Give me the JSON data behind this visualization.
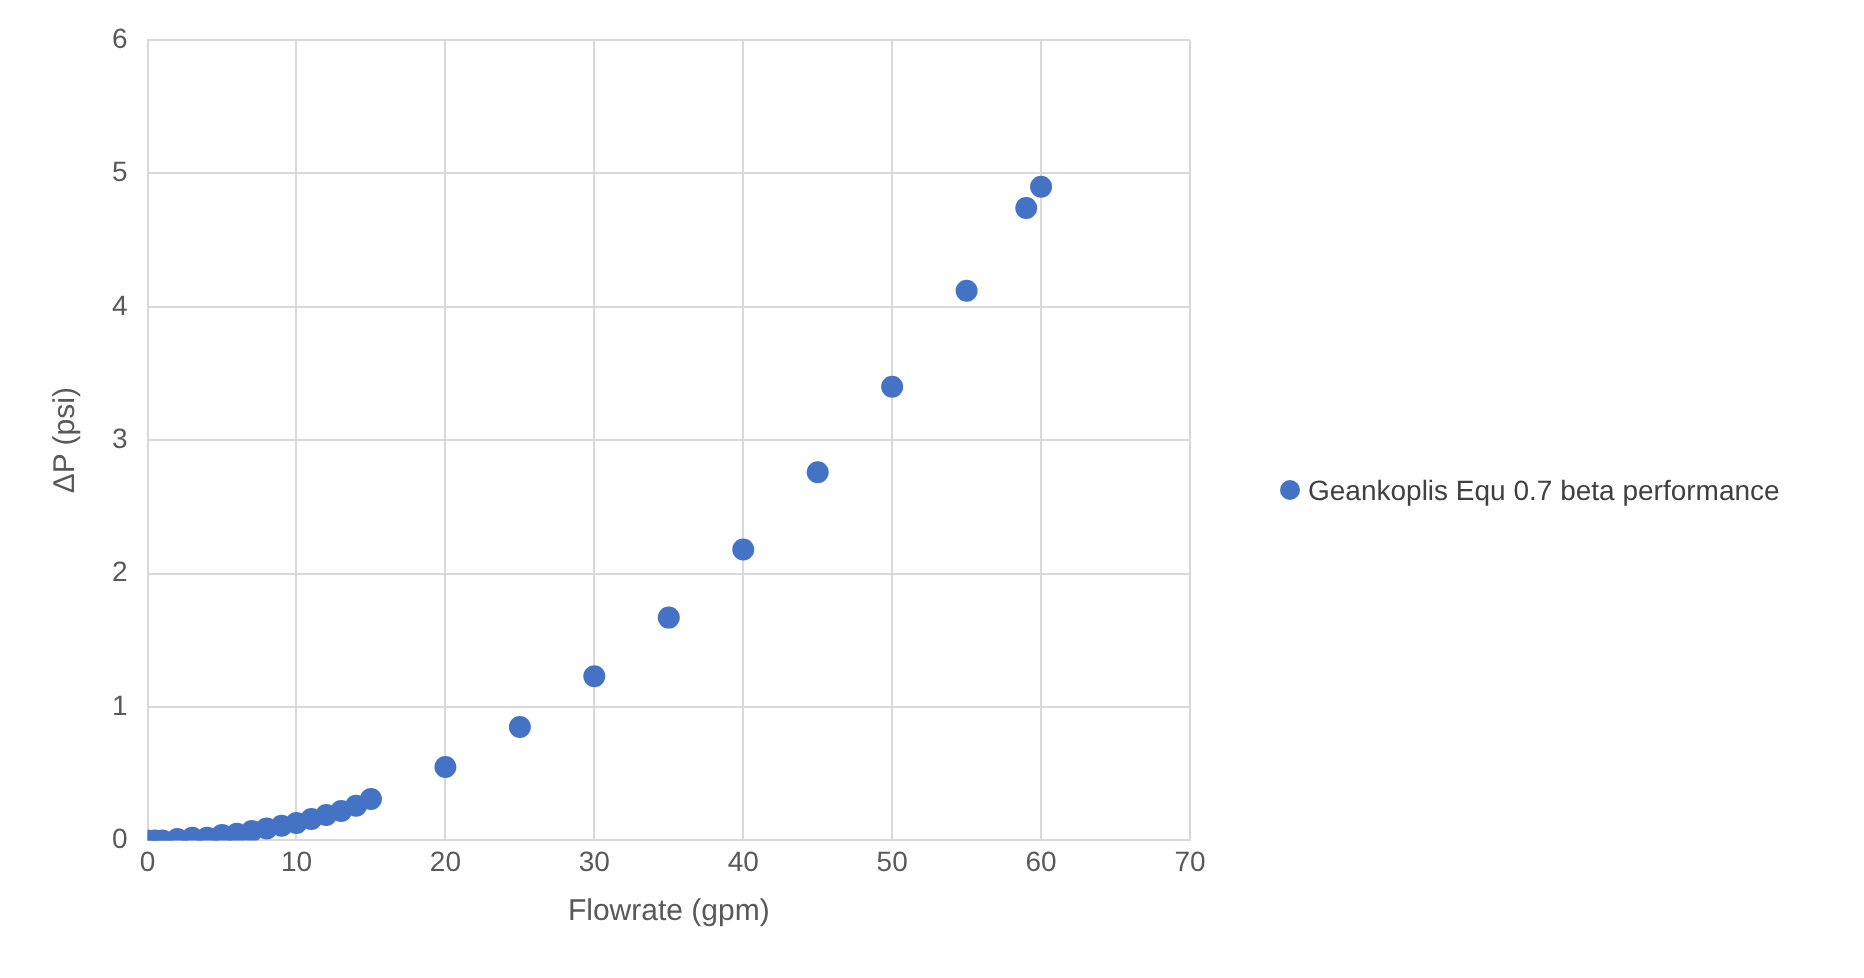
{
  "chart_data": {
    "type": "scatter",
    "xlabel": "Flowrate (gpm)",
    "ylabel": "ΔP (psi)",
    "xlim": [
      0,
      70
    ],
    "xticks": [
      0,
      10,
      20,
      30,
      40,
      50,
      60,
      70
    ],
    "ylim": [
      0,
      6
    ],
    "yticks": [
      0,
      1,
      2,
      3,
      4,
      5,
      6
    ],
    "grid": true,
    "legend": "right",
    "marker": "circle",
    "series": [
      {
        "name": "Geankoplis Equ 0.7 beta performance",
        "color": "#4472c4",
        "x": [
          0,
          0.5,
          1,
          2,
          3,
          4,
          5,
          6,
          7,
          8,
          9,
          10,
          11,
          12,
          13,
          14,
          15,
          20,
          25,
          30,
          35,
          40,
          45,
          50,
          55,
          59,
          60
        ],
        "values": [
          0,
          0,
          0,
          0.01,
          0.02,
          0.02,
          0.04,
          0.05,
          0.07,
          0.09,
          0.11,
          0.13,
          0.16,
          0.19,
          0.22,
          0.26,
          0.31,
          0.55,
          0.85,
          1.23,
          1.67,
          2.18,
          2.76,
          3.4,
          4.12,
          4.74,
          4.9
        ]
      }
    ]
  }
}
